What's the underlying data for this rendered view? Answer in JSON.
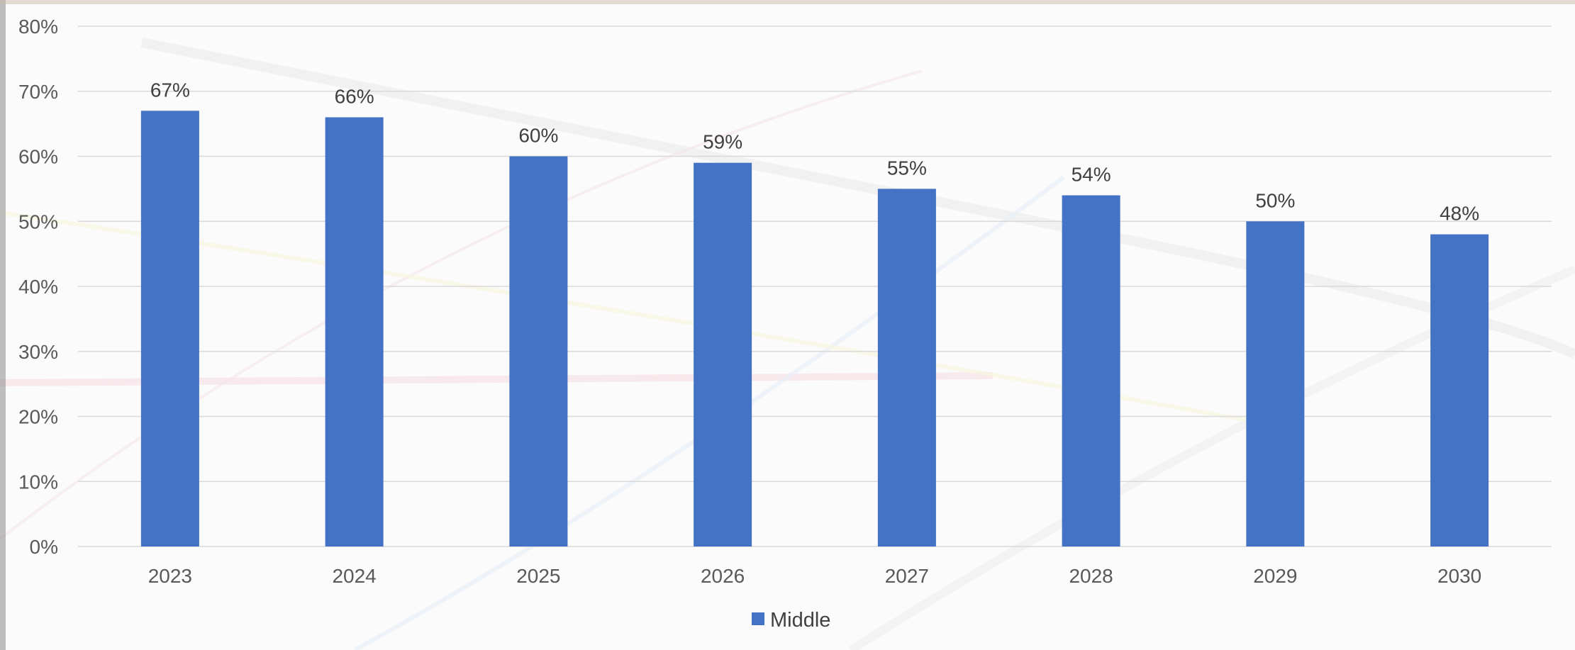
{
  "chart_data": {
    "type": "bar",
    "categories": [
      "2023",
      "2024",
      "2025",
      "2026",
      "2027",
      "2028",
      "2029",
      "2030"
    ],
    "series": [
      {
        "name": "Middle",
        "values": [
          67,
          66,
          60,
          59,
          55,
          54,
          50,
          48
        ],
        "labels": [
          "67%",
          "66%",
          "60%",
          "59%",
          "55%",
          "54%",
          "50%",
          "48%"
        ],
        "color": "#4472c4"
      }
    ],
    "y_ticks": [
      "0%",
      "10%",
      "20%",
      "30%",
      "40%",
      "50%",
      "60%",
      "70%",
      "80%"
    ],
    "ylim": [
      0,
      80
    ],
    "y_unit": "%",
    "grid": true,
    "legend": "bottom-center",
    "grid_color": "#d9d9d9"
  }
}
